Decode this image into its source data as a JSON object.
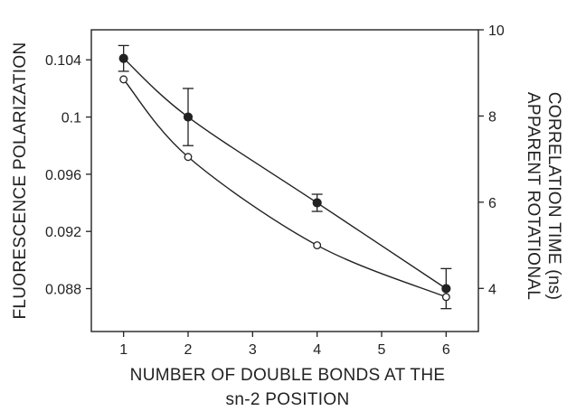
{
  "chart_data": {
    "type": "line",
    "xlabel_lines": [
      "NUMBER OF DOUBLE BONDS AT THE",
      "sn-2 POSITION"
    ],
    "ylabel_left": "FLUORESCENCE POLARIZATION",
    "ylabel_right_lines": [
      "APPARENT ROTATIONAL",
      "CORRELATION TIME (ns)"
    ],
    "xlim": [
      0.5,
      6.5
    ],
    "ylim_left": [
      0.085,
      0.1061
    ],
    "ylim_right": [
      3.0,
      10.0
    ],
    "x_ticks": [
      1,
      2,
      3,
      4,
      5,
      6
    ],
    "x_tick_labels": [
      "1",
      "2",
      "3",
      "4",
      "5",
      "6"
    ],
    "y_left_ticks": [
      0.088,
      0.092,
      0.096,
      0.1,
      0.104
    ],
    "y_left_tick_labels": [
      "0.088",
      "0.092",
      "0.096",
      "0.1",
      "0.104"
    ],
    "y_right_ticks": [
      4,
      6,
      8,
      10
    ],
    "y_right_tick_labels": [
      "4",
      "6",
      "8",
      "10"
    ],
    "grid": false,
    "series": [
      {
        "axis": "left",
        "marker": "filled-circle",
        "x": [
          1,
          2,
          4,
          6
        ],
        "y": [
          0.1041,
          0.1,
          0.094,
          0.088
        ],
        "y_err": [
          0.0009,
          0.002,
          0.0006,
          0.0014
        ],
        "color": "#222222"
      },
      {
        "axis": "right",
        "marker": "open-circle",
        "x": [
          1,
          2,
          4,
          6
        ],
        "y": [
          8.85,
          7.05,
          5.0,
          3.8
        ],
        "color": "#222222"
      }
    ]
  }
}
